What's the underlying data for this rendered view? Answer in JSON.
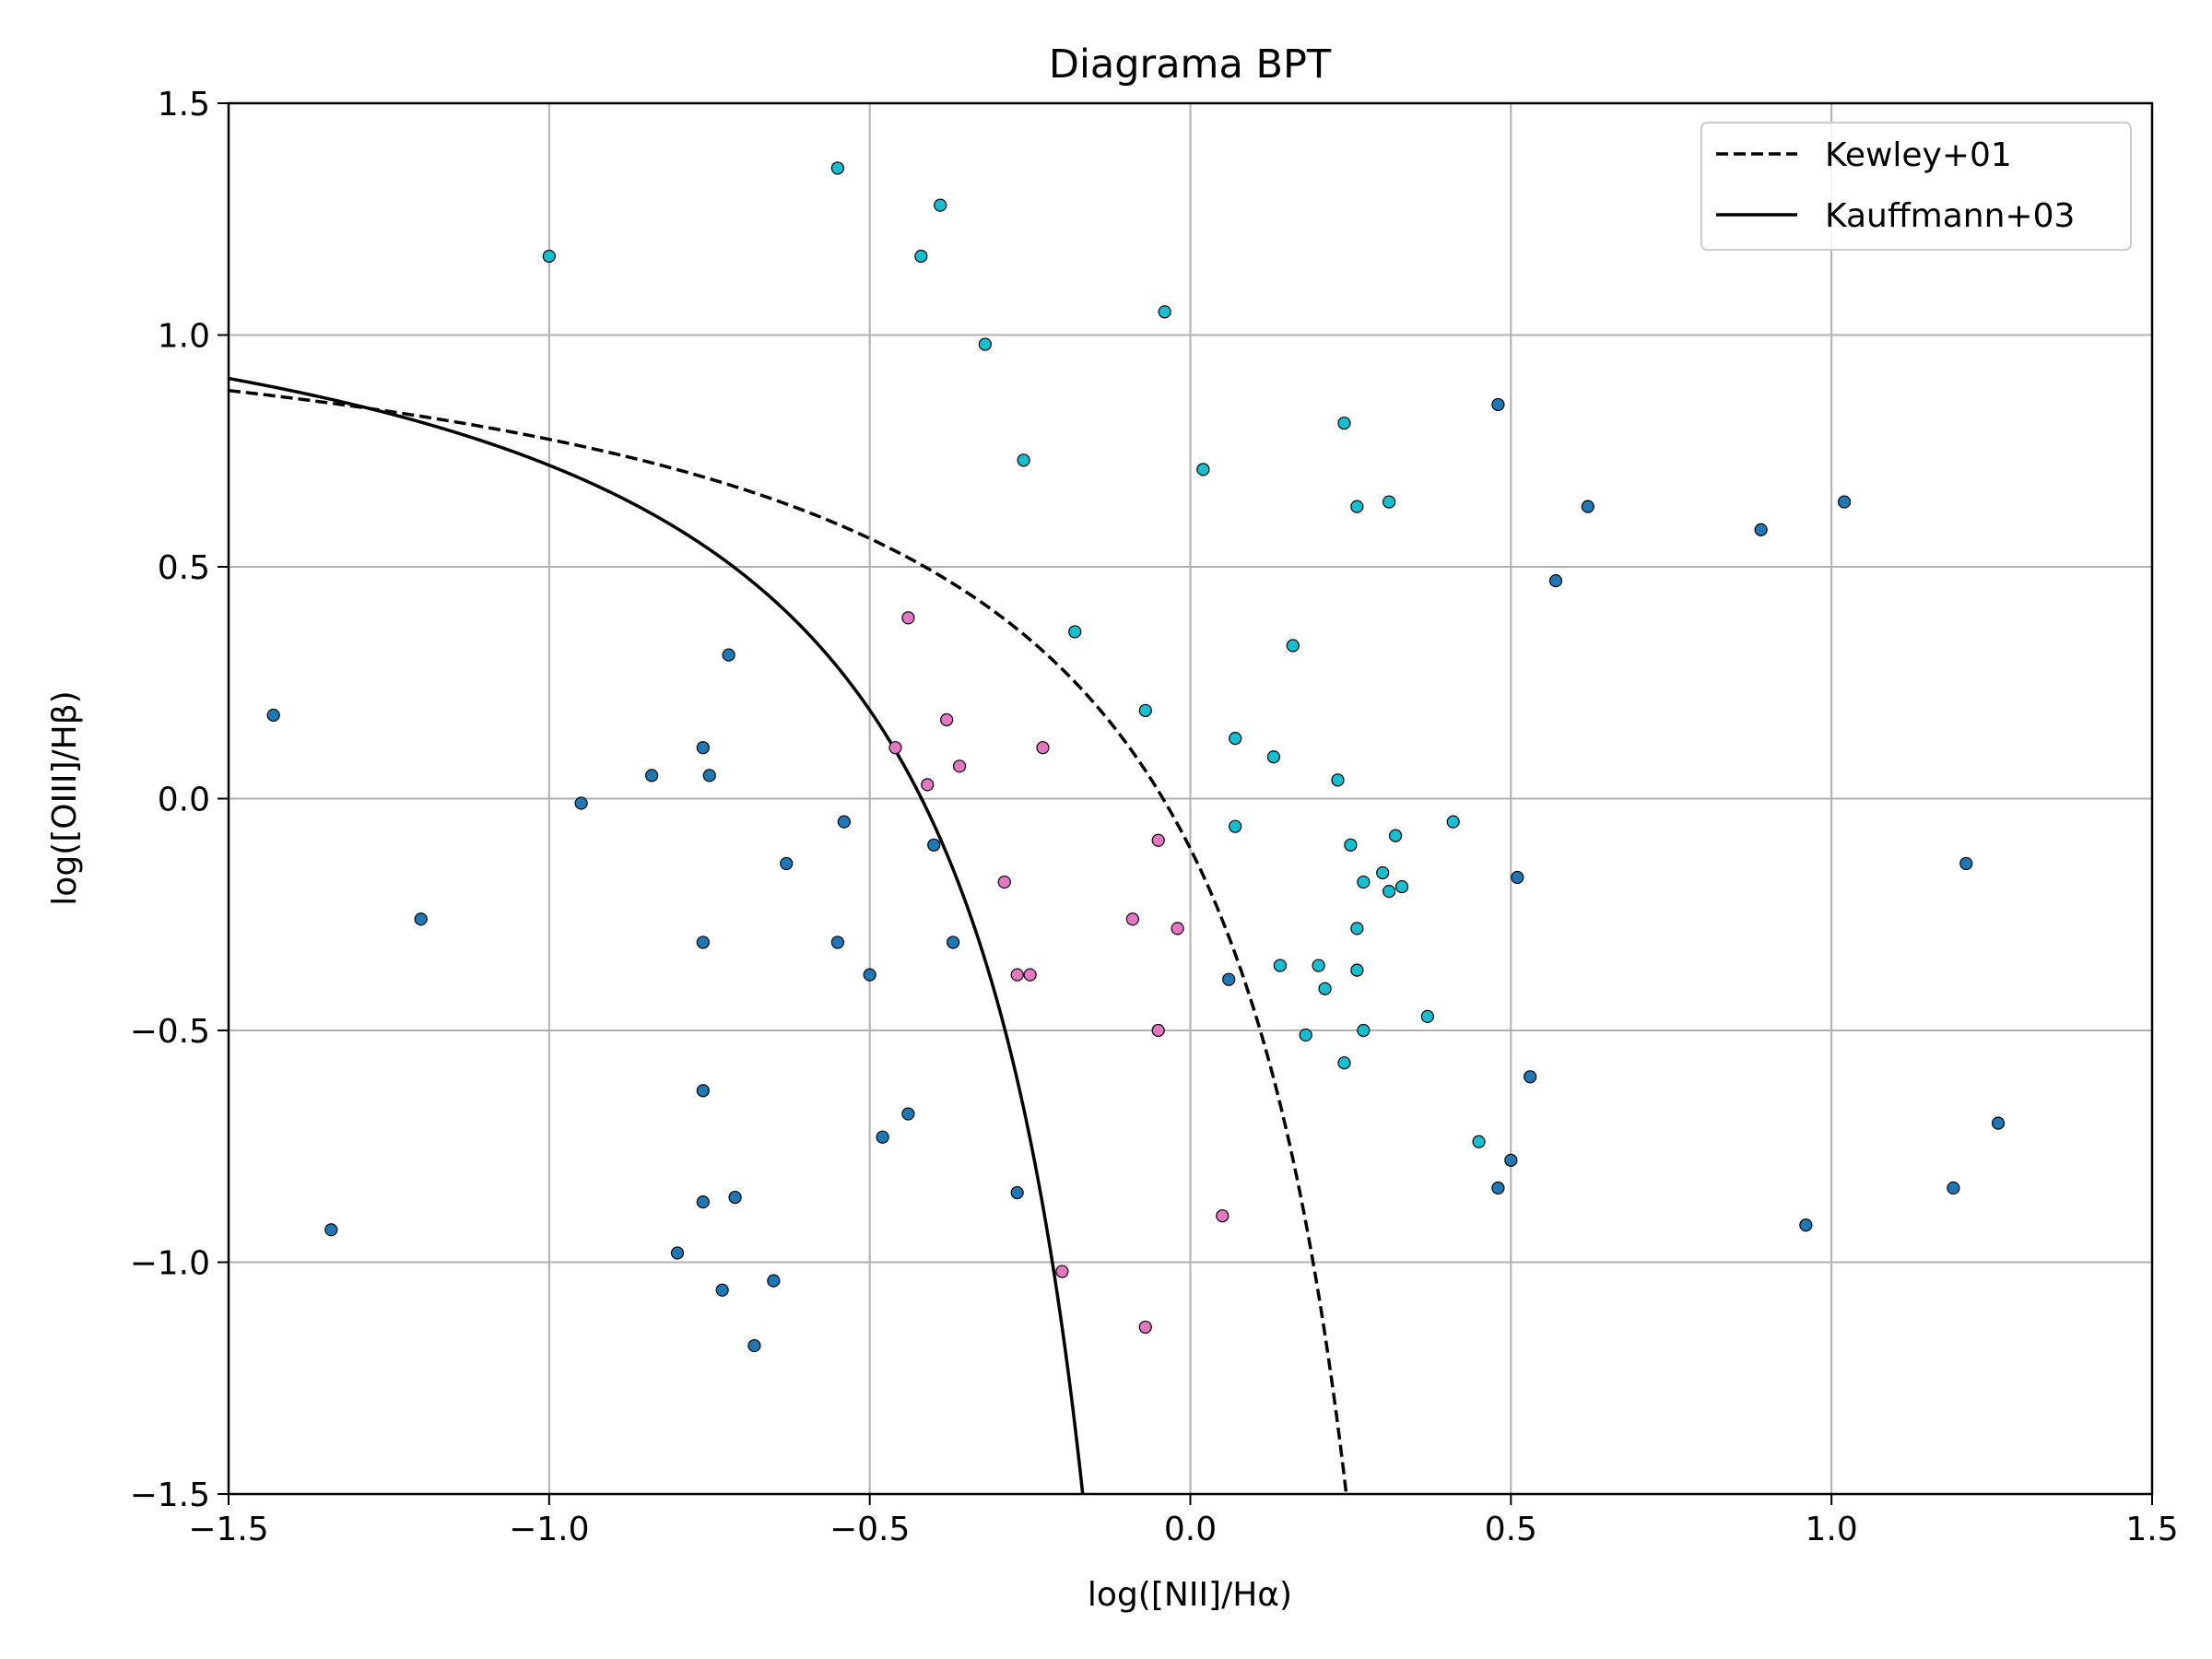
{
  "chart_data": {
    "type": "scatter",
    "title": "Diagrama BPT",
    "xlabel": "log([NII]/Hα)",
    "ylabel": "log([OIII]/Hβ)",
    "xlim": [
      -1.5,
      1.5
    ],
    "ylim": [
      -1.5,
      1.5
    ],
    "x_ticks": [
      -1.5,
      -1.0,
      -0.5,
      0.0,
      0.5,
      1.0,
      1.5
    ],
    "y_ticks": [
      -1.5,
      -1.0,
      -0.5,
      0.0,
      0.5,
      1.0,
      1.5
    ],
    "x_tick_labels": [
      "−1.5",
      "−1.0",
      "−0.5",
      "0.0",
      "0.5",
      "1.0",
      "1.5"
    ],
    "y_tick_labels": [
      "−1.5",
      "−1.0",
      "−0.5",
      "0.0",
      "0.5",
      "1.0",
      "1.5"
    ],
    "grid": true,
    "legend_position": "top-right",
    "lines": [
      {
        "name": "Kewley+01",
        "style": "dashed",
        "color": "#000000",
        "formula": "0.61/(x-0.47)+1.19"
      },
      {
        "name": "Kauffmann+03",
        "style": "solid",
        "color": "#000000",
        "formula": "0.61/(x-0.05)+1.3"
      }
    ],
    "groups": [
      {
        "color": "#1f77b4",
        "points": [
          [
            -1.43,
            0.18
          ],
          [
            -1.34,
            -0.93
          ],
          [
            -1.2,
            -0.26
          ],
          [
            -0.95,
            -0.01
          ],
          [
            -0.84,
            0.05
          ],
          [
            -0.76,
            0.11
          ],
          [
            -0.75,
            0.05
          ],
          [
            -0.72,
            0.31
          ],
          [
            -0.76,
            -0.31
          ],
          [
            -0.76,
            -0.63
          ],
          [
            -0.76,
            -0.87
          ],
          [
            -0.71,
            -0.86
          ],
          [
            -0.8,
            -0.98
          ],
          [
            -0.73,
            -1.06
          ],
          [
            -0.68,
            -1.18
          ],
          [
            -0.65,
            -1.04
          ],
          [
            -0.63,
            -0.14
          ],
          [
            -0.54,
            -0.05
          ],
          [
            -0.55,
            -0.31
          ],
          [
            -0.5,
            -0.38
          ],
          [
            -0.48,
            -0.73
          ],
          [
            -0.44,
            -0.68
          ],
          [
            -0.4,
            -0.1
          ],
          [
            -0.37,
            -0.31
          ],
          [
            -0.27,
            -0.85
          ],
          [
            0.06,
            -0.39
          ],
          [
            0.48,
            0.85
          ],
          [
            0.57,
            0.47
          ],
          [
            0.62,
            0.63
          ],
          [
            0.89,
            0.58
          ],
          [
            1.02,
            0.64
          ],
          [
            0.51,
            -0.17
          ],
          [
            0.53,
            -0.6
          ],
          [
            0.5,
            -0.78
          ],
          [
            0.48,
            -0.84
          ],
          [
            0.96,
            -0.92
          ],
          [
            1.21,
            -0.14
          ],
          [
            1.26,
            -0.7
          ],
          [
            1.19,
            -0.84
          ]
        ]
      },
      {
        "color": "#17becf",
        "points": [
          [
            -1.0,
            1.17
          ],
          [
            -0.55,
            1.36
          ],
          [
            -0.39,
            1.28
          ],
          [
            -0.42,
            1.17
          ],
          [
            -0.32,
            0.98
          ],
          [
            -0.26,
            0.73
          ],
          [
            -0.04,
            1.05
          ],
          [
            0.02,
            0.71
          ],
          [
            0.24,
            0.81
          ],
          [
            0.26,
            0.63
          ],
          [
            0.31,
            0.64
          ],
          [
            -0.18,
            0.36
          ],
          [
            -0.07,
            0.19
          ],
          [
            0.16,
            0.33
          ],
          [
            0.07,
            0.13
          ],
          [
            0.13,
            0.09
          ],
          [
            0.23,
            0.04
          ],
          [
            0.07,
            -0.06
          ],
          [
            0.25,
            -0.1
          ],
          [
            0.32,
            -0.08
          ],
          [
            0.41,
            -0.05
          ],
          [
            0.3,
            -0.16
          ],
          [
            0.27,
            -0.18
          ],
          [
            0.31,
            -0.2
          ],
          [
            0.33,
            -0.19
          ],
          [
            0.26,
            -0.28
          ],
          [
            0.14,
            -0.36
          ],
          [
            0.2,
            -0.36
          ],
          [
            0.26,
            -0.37
          ],
          [
            0.21,
            -0.41
          ],
          [
            0.18,
            -0.51
          ],
          [
            0.27,
            -0.5
          ],
          [
            0.37,
            -0.47
          ],
          [
            0.24,
            -0.57
          ],
          [
            0.45,
            -0.74
          ]
        ]
      },
      {
        "color": "#e377c2",
        "points": [
          [
            -0.44,
            0.39
          ],
          [
            -0.46,
            0.11
          ],
          [
            -0.38,
            0.17
          ],
          [
            -0.41,
            0.03
          ],
          [
            -0.36,
            0.07
          ],
          [
            -0.23,
            0.11
          ],
          [
            -0.29,
            -0.18
          ],
          [
            -0.27,
            -0.38
          ],
          [
            -0.25,
            -0.38
          ],
          [
            -0.09,
            -0.26
          ],
          [
            -0.05,
            -0.09
          ],
          [
            -0.02,
            -0.28
          ],
          [
            -0.05,
            -0.5
          ],
          [
            0.05,
            -0.9
          ],
          [
            -0.2,
            -1.02
          ],
          [
            -0.07,
            -1.14
          ]
        ]
      }
    ]
  }
}
